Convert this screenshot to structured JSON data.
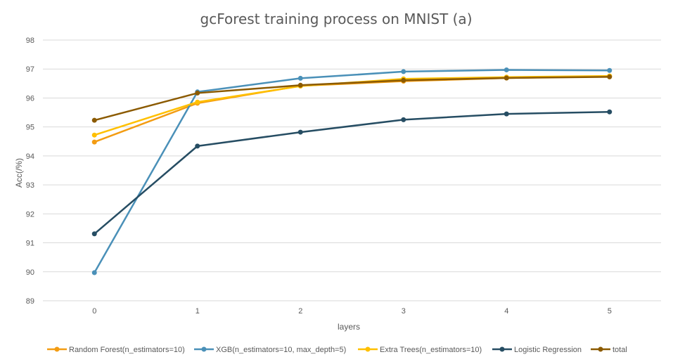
{
  "chart_data": {
    "type": "line",
    "title": "gcForest training process on MNIST (a)",
    "xlabel": "layers",
    "ylabel": "Acc(/%)",
    "categories": [
      "0",
      "1",
      "2",
      "3",
      "4",
      "5"
    ],
    "ylim": [
      89,
      98
    ],
    "yticks": [
      "89",
      "90",
      "91",
      "92",
      "93",
      "94",
      "95",
      "96",
      "97",
      "98"
    ],
    "grid": true,
    "legend_position": "bottom",
    "series": [
      {
        "name": "Random Forest(n_estimators=10)",
        "color": "#F39C12",
        "values": [
          94.48,
          95.82,
          96.42,
          96.58,
          96.69,
          96.75
        ]
      },
      {
        "name": "XGB(n_estimators=10, max_depth=5)",
        "color": "#4A90B8",
        "values": [
          89.97,
          96.21,
          96.68,
          96.91,
          96.97,
          96.95
        ]
      },
      {
        "name": "Extra Trees(n_estimators=10)",
        "color": "#FFC000",
        "values": [
          94.72,
          95.86,
          96.41,
          96.66,
          96.72,
          96.76
        ]
      },
      {
        "name": "Logistic Regression",
        "color": "#264D63",
        "values": [
          91.31,
          94.34,
          94.82,
          95.25,
          95.45,
          95.52
        ]
      },
      {
        "name": "total",
        "color": "#8B5A00",
        "values": [
          95.23,
          96.17,
          96.44,
          96.61,
          96.69,
          96.73
        ]
      }
    ]
  }
}
